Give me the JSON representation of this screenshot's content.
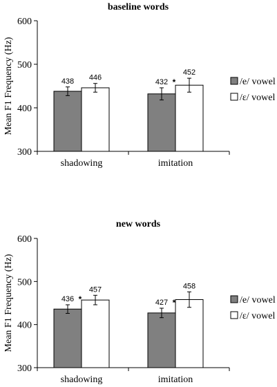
{
  "chart_data": [
    {
      "type": "bar",
      "title": "baseline words",
      "ylabel": "Mean F1 Frequency (Hz)",
      "ylim": [
        300,
        600
      ],
      "yticks": [
        300,
        400,
        500,
        600
      ],
      "categories": [
        "shadowing",
        "imitation"
      ],
      "series": [
        {
          "name": "/e/ vowel",
          "values": [
            438,
            432
          ],
          "errors": [
            10,
            14
          ],
          "color": "#808080"
        },
        {
          "name": "/ɛ/ vowel",
          "values": [
            446,
            452
          ],
          "errors": [
            10,
            16
          ],
          "color": "#ffffff"
        }
      ],
      "data_labels": [
        [
          "438",
          "446"
        ],
        [
          "432",
          "452"
        ]
      ],
      "annotations": [
        {
          "category": "imitation",
          "text": "*"
        }
      ],
      "legend_position": "right",
      "grid": false
    },
    {
      "type": "bar",
      "title": "new words",
      "ylabel": "Mean F1 Frequency (Hz)",
      "ylim": [
        300,
        600
      ],
      "yticks": [
        300,
        400,
        500,
        600
      ],
      "categories": [
        "shadowing",
        "imitation"
      ],
      "series": [
        {
          "name": "/e/ vowel",
          "values": [
            436,
            427
          ],
          "errors": [
            10,
            11
          ],
          "color": "#808080"
        },
        {
          "name": "/ɛ/ vowel",
          "values": [
            457,
            458
          ],
          "errors": [
            11,
            18
          ],
          "color": "#ffffff"
        }
      ],
      "data_labels": [
        [
          "436",
          "457"
        ],
        [
          "427",
          "458"
        ]
      ],
      "annotations": [
        {
          "category": "shadowing",
          "text": "*"
        },
        {
          "category": "imitation",
          "text": "*"
        }
      ],
      "legend_position": "right",
      "grid": false
    }
  ]
}
